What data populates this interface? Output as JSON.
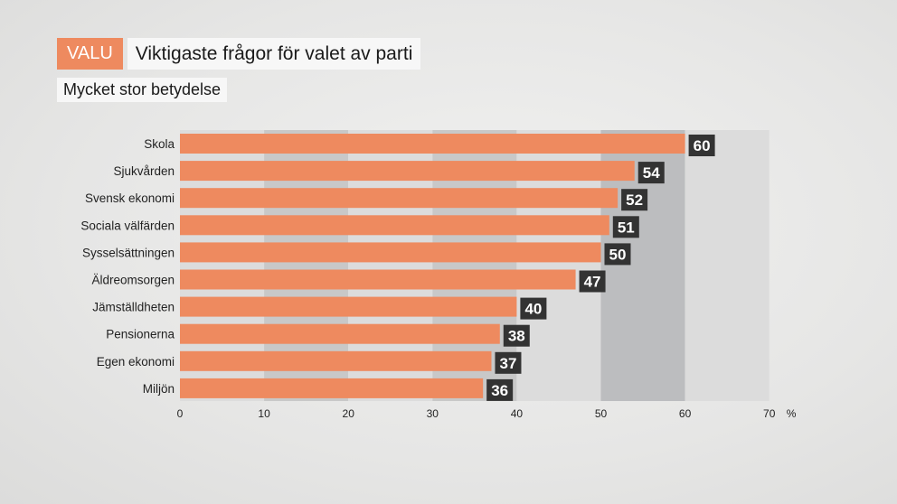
{
  "header": {
    "tag": "VALU",
    "title": "Viktigaste frågor för valet av parti",
    "subtitle": "Mycket stor betydelse"
  },
  "colors": {
    "bar": "#ee8a5f",
    "label_box": "#333333",
    "band_light": "#dcdcdc",
    "band_mid": "#c8c8c8",
    "band_dark": "#bcbdbf"
  },
  "chart_data": {
    "type": "bar",
    "orientation": "horizontal",
    "title": "Viktigaste frågor för valet av parti",
    "subtitle": "Mycket stor betydelse",
    "categories": [
      "Skola",
      "Sjukvården",
      "Svensk ekonomi",
      "Sociala välfärden",
      "Sysselsättningen",
      "Äldreomsorgen",
      "Jämställdheten",
      "Pensionerna",
      "Egen ekonomi",
      "Miljön"
    ],
    "values": [
      60,
      54,
      52,
      51,
      50,
      47,
      40,
      38,
      37,
      36
    ],
    "xlim": [
      0,
      70
    ],
    "xticks": [
      0,
      10,
      20,
      30,
      40,
      50,
      60,
      70
    ],
    "xunit": "%",
    "xlabel": "",
    "ylabel": ""
  }
}
